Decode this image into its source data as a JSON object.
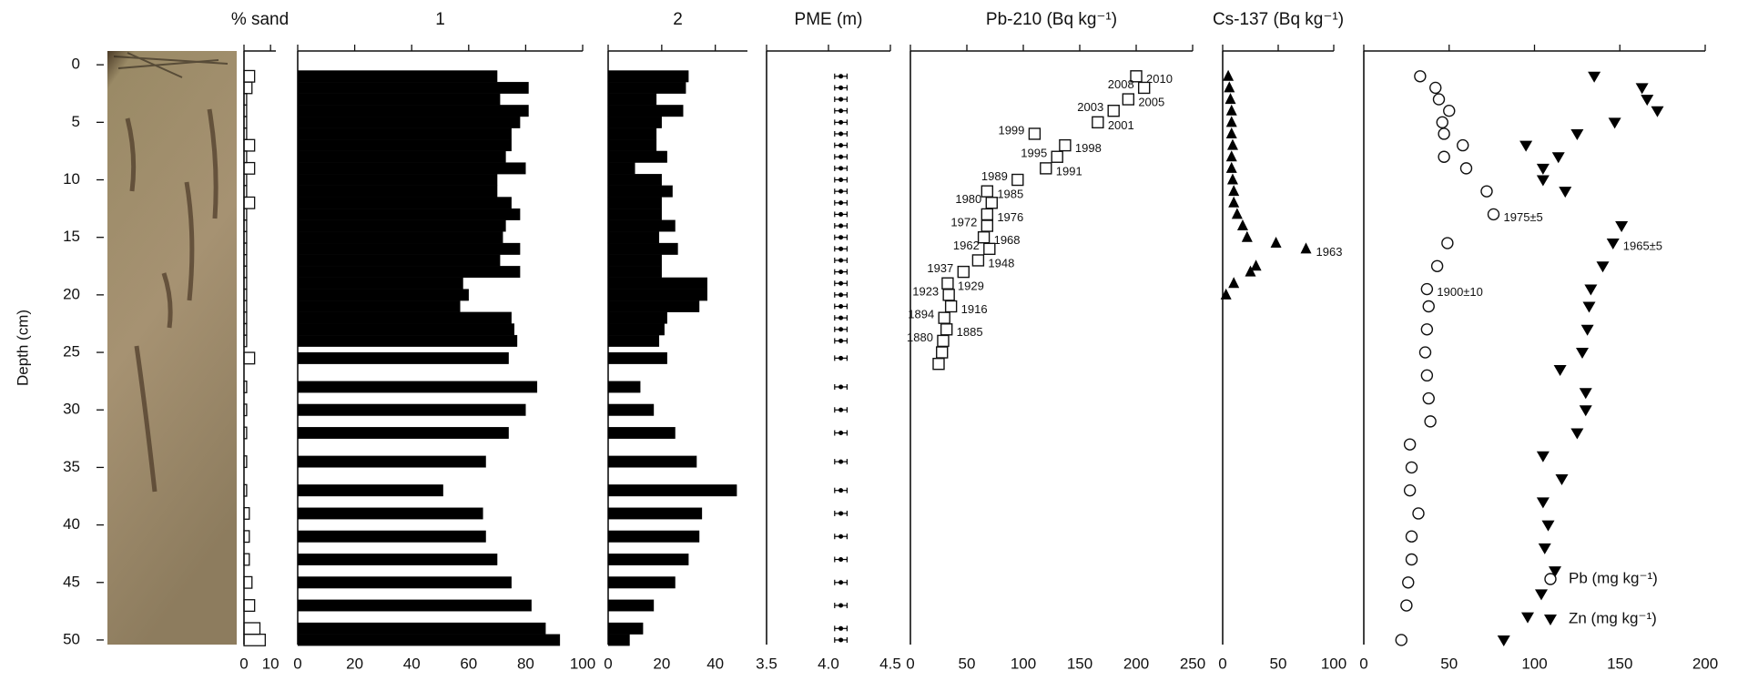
{
  "chart_data": [
    {
      "type": "hbar",
      "title": "% sand",
      "ylabel": "Depth (cm)",
      "ylim": [
        -1.2,
        50.4
      ],
      "yticks": [
        0,
        5,
        10,
        15,
        20,
        25,
        30,
        35,
        40,
        45,
        50
      ],
      "xlim": [
        0,
        12
      ],
      "xticks": [
        0,
        10
      ],
      "filled": false,
      "color": "#111111",
      "y": [
        1,
        2,
        3,
        4,
        5,
        6,
        7,
        8,
        9,
        10,
        11,
        12,
        13,
        14,
        15,
        16,
        17,
        18,
        19,
        20,
        21,
        22,
        23,
        24,
        25.5,
        28,
        30,
        32,
        34.5,
        37,
        39,
        41,
        43,
        45,
        47,
        49,
        50
      ],
      "values": [
        4,
        3,
        1,
        1,
        1,
        1,
        4,
        1,
        4,
        1,
        1,
        4,
        1,
        1,
        1,
        1,
        1,
        1,
        1,
        1,
        1,
        1,
        1,
        1,
        4,
        1,
        1,
        1,
        1,
        1,
        2,
        2,
        2,
        3,
        4,
        6,
        8
      ]
    },
    {
      "type": "hbar",
      "title": "1",
      "xlim": [
        0,
        100
      ],
      "xticks": [
        0,
        20,
        40,
        60,
        80,
        100
      ],
      "filled": true,
      "color": "#000000",
      "y": [
        1,
        2,
        3,
        4,
        5,
        6,
        7,
        8,
        9,
        10,
        11,
        12,
        13,
        14,
        15,
        16,
        17,
        18,
        19,
        20,
        21,
        22,
        23,
        24,
        25.5,
        28,
        30,
        32,
        34.5,
        37,
        39,
        41,
        43,
        45,
        47,
        49,
        50
      ],
      "values": [
        70,
        81,
        71,
        81,
        78,
        75,
        75,
        73,
        80,
        70,
        70,
        75,
        78,
        73,
        72,
        78,
        71,
        78,
        58,
        60,
        57,
        75,
        76,
        77,
        74,
        84,
        80,
        74,
        66,
        51,
        65,
        66,
        70,
        75,
        82,
        87,
        92
      ]
    },
    {
      "type": "hbar",
      "title": "2",
      "xlim": [
        0,
        52
      ],
      "xticks": [
        0,
        20,
        40
      ],
      "filled": true,
      "color": "#000000",
      "y": [
        1,
        2,
        3,
        4,
        5,
        6,
        7,
        8,
        9,
        10,
        11,
        12,
        13,
        14,
        15,
        16,
        17,
        18,
        19,
        20,
        21,
        22,
        23,
        24,
        25.5,
        28,
        30,
        32,
        34.5,
        37,
        39,
        41,
        43,
        45,
        47,
        49,
        50
      ],
      "values": [
        30,
        29,
        18,
        28,
        20,
        18,
        18,
        22,
        10,
        20,
        24,
        20,
        20,
        25,
        19,
        26,
        20,
        20,
        37,
        37,
        34,
        22,
        21,
        19,
        22,
        12,
        17,
        25,
        33,
        48,
        35,
        34,
        30,
        25,
        17,
        13,
        8
      ]
    },
    {
      "type": "errorbar",
      "title": "PME (m)",
      "xlim": [
        3.5,
        4.5
      ],
      "xticks": [
        3.5,
        {
          "value": 4,
          "label": "4.0"
        },
        4.5
      ],
      "color": "#000000",
      "y": [
        1,
        2,
        3,
        4,
        5,
        6,
        7,
        8,
        9,
        10,
        11,
        12,
        13,
        14,
        15,
        16,
        17,
        18,
        19,
        20,
        21,
        22,
        23,
        24,
        25.5,
        28,
        30,
        32,
        34.5,
        37,
        39,
        41,
        43,
        45,
        47,
        49,
        50
      ],
      "values": [
        4.1,
        4.1,
        4.1,
        4.1,
        4.1,
        4.1,
        4.1,
        4.1,
        4.1,
        4.1,
        4.1,
        4.1,
        4.1,
        4.1,
        4.1,
        4.1,
        4.1,
        4.1,
        4.1,
        4.1,
        4.1,
        4.1,
        4.1,
        4.1,
        4.1,
        4.1,
        4.1,
        4.1,
        4.1,
        4.1,
        4.1,
        4.1,
        4.1,
        4.1,
        4.1,
        4.1,
        4.1
      ],
      "errors": [
        0.05,
        0.05,
        0.05,
        0.05,
        0.05,
        0.05,
        0.05,
        0.05,
        0.05,
        0.05,
        0.05,
        0.05,
        0.05,
        0.05,
        0.05,
        0.05,
        0.05,
        0.05,
        0.05,
        0.05,
        0.05,
        0.05,
        0.05,
        0.05,
        0.05,
        0.05,
        0.05,
        0.05,
        0.05,
        0.05,
        0.05,
        0.05,
        0.05,
        0.05,
        0.05,
        0.05,
        0.05
      ]
    },
    {
      "type": "scatter",
      "title": "Pb-210 (Bq kg⁻¹)",
      "xlim": [
        0,
        250
      ],
      "xticks": [
        0,
        50,
        100,
        150,
        200,
        250
      ],
      "series": [
        {
          "marker": "square",
          "color": "#111111",
          "x": [
            200,
            207,
            193,
            180,
            166,
            110,
            137,
            130,
            120,
            95,
            68,
            72,
            68,
            68,
            65,
            70,
            60,
            47,
            33,
            34,
            36,
            30,
            32,
            29,
            28,
            25
          ],
          "y": [
            1,
            2,
            3,
            4,
            5,
            6,
            7,
            8,
            9,
            10,
            11,
            12,
            13,
            14,
            15,
            16,
            17,
            18,
            19,
            20,
            21,
            22,
            23,
            24,
            25,
            26
          ],
          "point_labels": [
            "2010",
            "2008",
            "2005",
            "2003",
            "2001",
            "1999",
            "1998",
            "1995",
            "1991",
            "1989",
            "1985",
            "1980",
            "1976",
            "1972",
            "1968",
            "1962",
            "1948",
            "1937",
            "1929",
            "1923",
            "1916",
            "1894",
            "1885",
            "1880",
            null,
            null
          ]
        }
      ]
    },
    {
      "type": "scatter",
      "title": "Cs-137 (Bq kg⁻¹)",
      "xlim": [
        0,
        100
      ],
      "xticks": [
        0,
        50,
        100
      ],
      "series": [
        {
          "marker": "triangle-up",
          "color": "#000000",
          "x": [
            5,
            6,
            7,
            8,
            8,
            8,
            9,
            8,
            8,
            9,
            10,
            10,
            13,
            18,
            22,
            48,
            75,
            30,
            25,
            10,
            3
          ],
          "y": [
            1,
            2,
            3,
            4,
            5,
            6,
            7,
            8,
            9,
            10,
            11,
            12,
            13,
            14,
            15,
            15.5,
            16,
            17.5,
            18,
            19,
            20
          ],
          "point_labels": [
            null,
            null,
            null,
            null,
            null,
            null,
            null,
            null,
            null,
            null,
            null,
            null,
            null,
            null,
            null,
            null,
            "1963",
            null,
            null,
            null,
            null
          ]
        }
      ]
    },
    {
      "type": "scatter",
      "xlim": [
        0,
        200
      ],
      "xticks": [
        0,
        50,
        100,
        150,
        200
      ],
      "legend": "lower right",
      "series": [
        {
          "name": "Pb (mg kg⁻¹)",
          "marker": "circle",
          "color": "#111111",
          "x": [
            33,
            42,
            44,
            50,
            46,
            47,
            58,
            47,
            60,
            72,
            76,
            49,
            43,
            37,
            38,
            37,
            36,
            37,
            38,
            39,
            27,
            28,
            27,
            32,
            28,
            28,
            26,
            25,
            22
          ],
          "y": [
            1,
            2,
            3,
            4,
            5,
            6,
            7,
            8,
            9,
            11,
            13,
            15.5,
            17.5,
            19.5,
            21,
            23,
            25,
            27,
            29,
            31,
            33,
            35,
            37,
            39,
            41,
            43,
            45,
            47,
            50
          ],
          "point_labels": [
            null,
            null,
            null,
            null,
            null,
            null,
            null,
            null,
            null,
            null,
            "1975±5",
            null,
            null,
            "1900±10",
            null,
            null,
            null,
            null,
            null,
            null,
            null,
            null,
            null,
            null,
            null,
            null,
            null,
            null,
            null
          ]
        },
        {
          "name": "Zn (mg kg⁻¹)",
          "marker": "triangle-down",
          "color": "#000000",
          "x": [
            135,
            163,
            166,
            172,
            147,
            125,
            95,
            114,
            105,
            105,
            118,
            151,
            146,
            140,
            133,
            132,
            131,
            128,
            115,
            130,
            130,
            125,
            105,
            116,
            105,
            108,
            106,
            112,
            104,
            96,
            82
          ],
          "y": [
            1,
            2,
            3,
            4,
            5,
            6,
            7,
            8,
            9,
            10,
            11,
            14,
            15.5,
            17.5,
            19.5,
            21,
            23,
            25,
            26.5,
            28.5,
            30,
            32,
            34,
            36,
            38,
            40,
            42,
            44,
            46,
            48,
            50
          ],
          "point_labels": [
            null,
            null,
            null,
            null,
            null,
            null,
            null,
            null,
            null,
            null,
            null,
            null,
            "1965±5",
            null,
            null,
            null,
            null,
            null,
            null,
            null,
            null,
            null,
            null,
            null,
            null,
            null,
            null,
            null,
            null,
            null,
            null
          ]
        }
      ]
    }
  ]
}
